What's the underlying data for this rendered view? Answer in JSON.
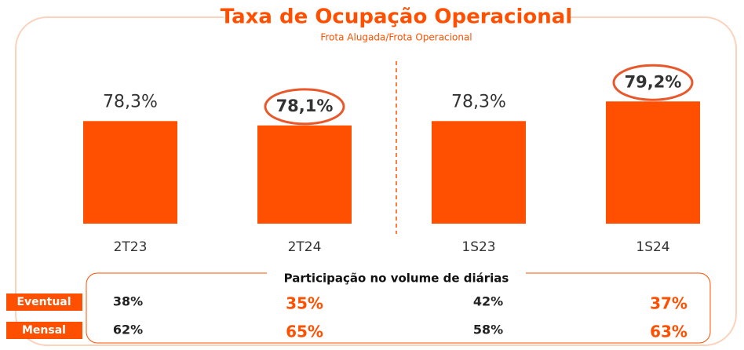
{
  "chart_data": {
    "type": "bar",
    "title": "Taxa de Ocupação Operacional",
    "subtitle": "Frota Alugada/Frota Operacional",
    "categories": [
      "2T23",
      "2T24",
      "1S23",
      "1S24"
    ],
    "values": [
      78.3,
      78.1,
      78.3,
      79.2
    ],
    "value_labels": [
      "78,3%",
      "78,1%",
      "78,3%",
      "79,2%"
    ],
    "emphasis": [
      false,
      true,
      false,
      true
    ],
    "color": "#fe5000",
    "ylim": [
      73.6,
      80
    ]
  },
  "table": {
    "title": "Participação no volume de diárias",
    "rows": [
      {
        "name": "Eventual",
        "values": [
          "38%",
          "35%",
          "42%",
          "37%"
        ]
      },
      {
        "name": "Mensal",
        "values": [
          "62%",
          "65%",
          "58%",
          "63%"
        ]
      }
    ]
  }
}
